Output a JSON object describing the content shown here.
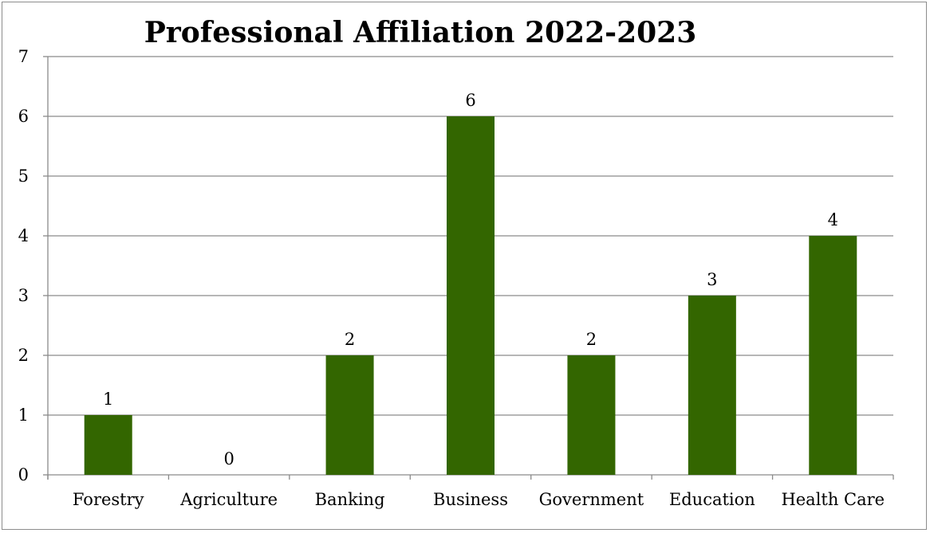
{
  "chart_data": {
    "type": "bar",
    "title": "Professional Affiliation 2022-2023",
    "categories": [
      "Forestry",
      "Agriculture",
      "Banking",
      "Business",
      "Government",
      "Education",
      "Health Care"
    ],
    "values": [
      1,
      0,
      2,
      6,
      2,
      3,
      4
    ],
    "data_labels": [
      "1",
      "0",
      "2",
      "6",
      "2",
      "3",
      "4"
    ],
    "y_ticks": [
      "0",
      "1",
      "2",
      "3",
      "4",
      "5",
      "6",
      "7"
    ],
    "ylim": [
      0,
      7
    ],
    "xlabel": "",
    "ylabel": "",
    "grid": true,
    "legend": "none",
    "bar_color": "#336600"
  }
}
